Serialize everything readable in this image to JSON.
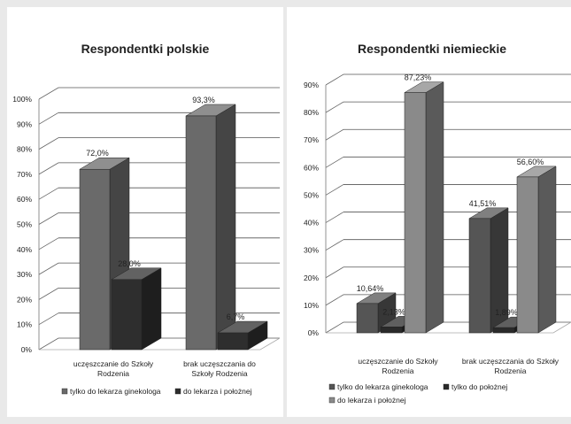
{
  "chart_data": [
    {
      "type": "bar",
      "title": "Respondentki polskie",
      "categories": [
        "uczęszczanie do Szkoły Rodzenia",
        "brak uczęszczania do Szkoły Rodzenia"
      ],
      "category_lines": [
        [
          "uczęszczanie do Szkoły",
          "Rodzenia"
        ],
        [
          "brak uczęszczania do",
          "Szkoły Rodzenia"
        ]
      ],
      "series": [
        {
          "name": "tylko do lekarza ginekologa",
          "values": [
            72.0,
            93.3
          ],
          "labels": [
            "72,0%",
            "93,3%"
          ],
          "color": "#6a6a6a"
        },
        {
          "name": "do lekarza i położnej",
          "values": [
            28.0,
            6.7
          ],
          "labels": [
            "28,0%",
            "6,7%"
          ],
          "color": "#2e2e2e"
        }
      ],
      "y_ticks": [
        "0%",
        "10%",
        "20%",
        "30%",
        "40%",
        "50%",
        "60%",
        "70%",
        "80%",
        "90%",
        "100%"
      ],
      "ylim": [
        0,
        100
      ],
      "grid": true,
      "legend": "bottom"
    },
    {
      "type": "bar",
      "title": "Respondentki niemieckie",
      "categories": [
        "uczęszczanie do Szkoły Rodzenia",
        "brak uczęszczania do Szkoły Rodzenia"
      ],
      "category_lines": [
        [
          "uczęszczanie do Szkoły",
          "Rodzenia"
        ],
        [
          "brak uczęszczania do Szkoły",
          "Rodzenia"
        ]
      ],
      "series": [
        {
          "name": "tylko do lekarza ginekologa",
          "values": [
            10.64,
            41.51
          ],
          "labels": [
            "10,64%",
            "41,51%"
          ],
          "color": "#555555"
        },
        {
          "name": "tylko do położnej",
          "values": [
            2.13,
            1.89
          ],
          "labels": [
            "2,13%",
            "1,89%"
          ],
          "color": "#2a2a2a"
        },
        {
          "name": "do lekarza i położnej",
          "values": [
            87.23,
            56.6
          ],
          "labels": [
            "87,23%",
            "56,60%"
          ],
          "color": "#8a8a8a"
        }
      ],
      "y_ticks": [
        "0%",
        "10%",
        "20%",
        "30%",
        "40%",
        "50%",
        "60%",
        "70%",
        "80%",
        "90%"
      ],
      "ylim": [
        0,
        90
      ],
      "grid": true,
      "legend": "bottom"
    }
  ]
}
